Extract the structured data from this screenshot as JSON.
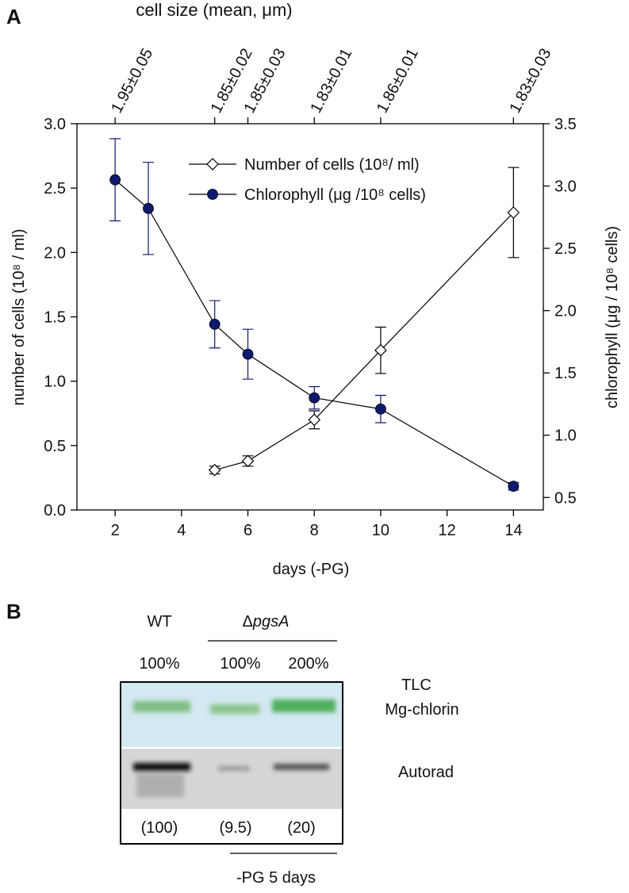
{
  "chart_data": {
    "type": "line",
    "panel_label": "A",
    "top_axis": {
      "title": "cell size (mean, μm)",
      "x": [
        2,
        5,
        6,
        8,
        10,
        14
      ],
      "labels": [
        "1.95±0.05",
        "1.85±0.02",
        "1.85±0.03",
        "1.83±0.01",
        "1.86±0.01",
        "1.83±0.03"
      ]
    },
    "x_label": "days (-PG)",
    "y_label": "number of cells (10⁸ / ml)",
    "y2_label": "chlorophyll (μg / 10⁸ cells)",
    "xlim": [
      0.85,
      14.9
    ],
    "xticks": [
      2,
      4,
      6,
      8,
      10,
      12,
      14
    ],
    "ylim": [
      0,
      3
    ],
    "yticks": [
      {
        "value": 0,
        "label": "0.0"
      },
      0.5,
      {
        "value": 1,
        "label": "1.0"
      },
      1.5,
      {
        "value": 2,
        "label": "2.0"
      },
      2.5,
      {
        "value": 3,
        "label": "3.0"
      }
    ],
    "y2lim": [
      0.4,
      3.5
    ],
    "y2ticks": [
      0.5,
      {
        "value": 1,
        "label": "1.0"
      },
      1.5,
      {
        "value": 2,
        "label": "2.0"
      },
      2.5,
      {
        "value": 3,
        "label": "3.0"
      },
      3.5
    ],
    "series": [
      {
        "name": "Number of cells (10⁸/ ml)",
        "color": "#ffffff",
        "marker": "diamond",
        "axis": "y",
        "x": [
          5,
          6,
          8,
          10,
          14
        ],
        "values": [
          0.31,
          0.38,
          0.7,
          1.24,
          2.31
        ],
        "errors": [
          0.03,
          0.04,
          0.07,
          0.18,
          0.35
        ]
      },
      {
        "name": "Chlorophyll  (μg /10⁸ cells)",
        "color": "#0d1a6e",
        "marker": "circle",
        "axis": "y2",
        "x": [
          2,
          3,
          5,
          6,
          8,
          10,
          14
        ],
        "values": [
          3.05,
          2.82,
          1.89,
          1.65,
          1.3,
          1.21,
          0.59
        ],
        "errors": [
          0.33,
          0.37,
          0.19,
          0.2,
          0.09,
          0.11,
          0.03
        ]
      }
    ]
  },
  "panel_b": {
    "panel_label": "B",
    "wt": "WT",
    "mutant_symbol": "Δ",
    "mutant_gene": "pgsA",
    "loadings": [
      "100%",
      "100%",
      "200%"
    ],
    "tlc": "TLC",
    "tlc_sub": "Mg-chlorin",
    "autorad": "Autorad",
    "counts": [
      "(100)",
      "(9.5)",
      "(20)"
    ],
    "treatment": "-PG 5 days"
  }
}
